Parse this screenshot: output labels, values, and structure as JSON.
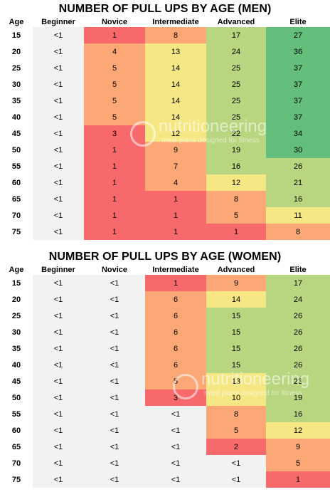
{
  "chart_data": [
    {
      "type": "table",
      "title": "NUMBER OF PULL UPS BY AGE (MEN)",
      "columns": [
        "Age",
        "Beginner",
        "Novice",
        "Intermediate",
        "Advanced",
        "Elite"
      ],
      "rows": [
        [
          "15",
          "<1",
          "1",
          "8",
          "17",
          "27"
        ],
        [
          "20",
          "<1",
          "4",
          "13",
          "24",
          "36"
        ],
        [
          "25",
          "<1",
          "5",
          "14",
          "25",
          "37"
        ],
        [
          "30",
          "<1",
          "5",
          "14",
          "25",
          "37"
        ],
        [
          "35",
          "<1",
          "5",
          "14",
          "25",
          "37"
        ],
        [
          "40",
          "<1",
          "5",
          "14",
          "25",
          "37"
        ],
        [
          "45",
          "<1",
          "3",
          "12",
          "22",
          "34"
        ],
        [
          "50",
          "<1",
          "1",
          "9",
          "19",
          "30"
        ],
        [
          "55",
          "<1",
          "1",
          "7",
          "16",
          "26"
        ],
        [
          "60",
          "<1",
          "1",
          "4",
          "12",
          "21"
        ],
        [
          "65",
          "<1",
          "1",
          "1",
          "8",
          "16"
        ],
        [
          "70",
          "<1",
          "1",
          "1",
          "5",
          "11"
        ],
        [
          "75",
          "<1",
          "1",
          "1",
          "1",
          "8"
        ]
      ]
    },
    {
      "type": "table",
      "title": "NUMBER OF PULL UPS BY AGE (WOMEN)",
      "columns": [
        "Age",
        "Beginner",
        "Novice",
        "Intermediate",
        "Advanced",
        "Elite"
      ],
      "rows": [
        [
          "15",
          "<1",
          "<1",
          "1",
          "9",
          "17"
        ],
        [
          "20",
          "<1",
          "<1",
          "6",
          "14",
          "24"
        ],
        [
          "25",
          "<1",
          "<1",
          "6",
          "15",
          "26"
        ],
        [
          "30",
          "<1",
          "<1",
          "6",
          "15",
          "26"
        ],
        [
          "35",
          "<1",
          "<1",
          "6",
          "15",
          "26"
        ],
        [
          "40",
          "<1",
          "<1",
          "6",
          "15",
          "26"
        ],
        [
          "45",
          "<1",
          "<1",
          "5",
          "13",
          "23"
        ],
        [
          "50",
          "<1",
          "<1",
          "3",
          "10",
          "19"
        ],
        [
          "55",
          "<1",
          "<1",
          "<1",
          "8",
          "16"
        ],
        [
          "60",
          "<1",
          "<1",
          "<1",
          "5",
          "12"
        ],
        [
          "65",
          "<1",
          "<1",
          "<1",
          "2",
          "9"
        ],
        [
          "70",
          "<1",
          "<1",
          "<1",
          "<1",
          "5"
        ],
        [
          "75",
          "<1",
          "<1",
          "<1",
          "<1",
          "1"
        ]
      ]
    }
  ],
  "watermark": {
    "brand": "nutritioneering",
    "tagline": "meal plans designed for fitness"
  },
  "colors": {
    "red": "#f8696b",
    "orange": "#fba876",
    "yellow": "#f5e884",
    "lightgreen": "#b8d67f",
    "green": "#63be7b",
    "gray": "#f2f2f2"
  }
}
